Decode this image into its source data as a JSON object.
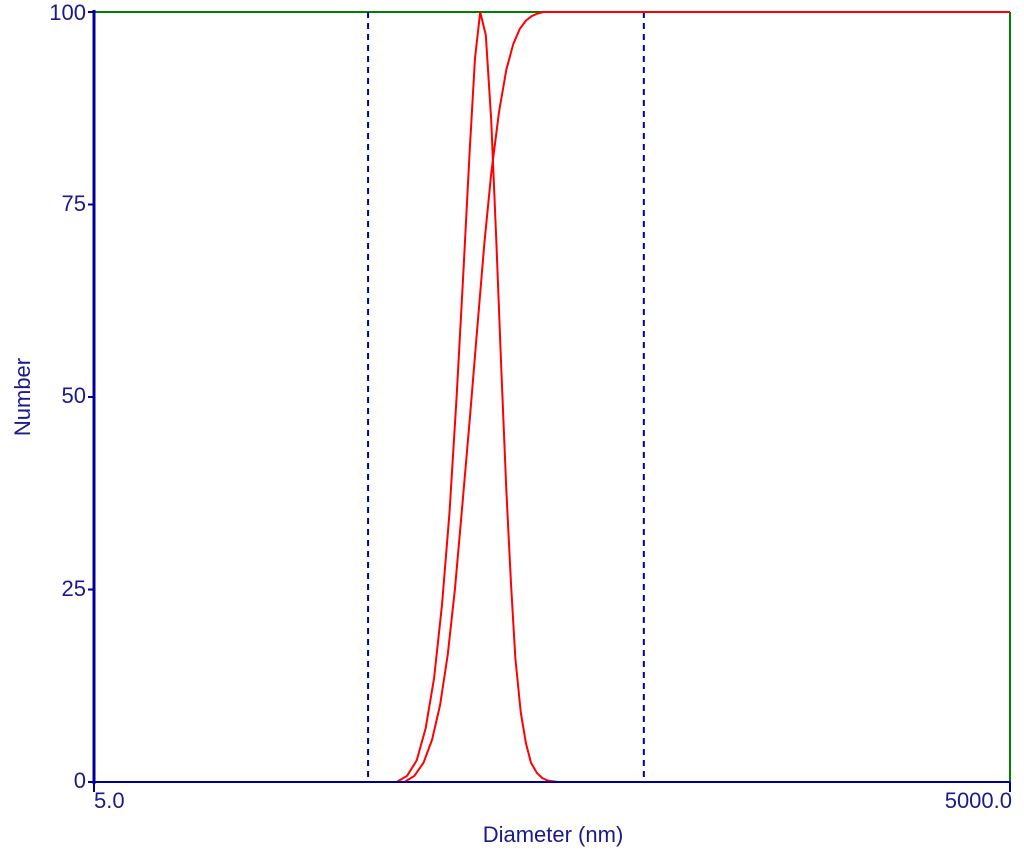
{
  "chart_data": {
    "type": "line",
    "title": "",
    "xlabel": "Diameter (nm)",
    "ylabel": "Number",
    "x_scale": "log",
    "xlim": [
      5.0,
      5000.0
    ],
    "ylim": [
      0,
      100
    ],
    "x_tick_labels": [
      "5.0",
      "5000.0"
    ],
    "y_ticks": [
      0,
      25,
      50,
      75,
      100
    ],
    "y_tick_labels": [
      "0",
      "25",
      "50",
      "75",
      "100"
    ],
    "grid": false,
    "vertical_markers": [
      39.5,
      316.0
    ],
    "colors": {
      "axis": "#000099",
      "frame": "#008000",
      "series": "#ff0000",
      "markers": "#000099",
      "text": "#1a1a8c"
    },
    "series": [
      {
        "kind": "distribution",
        "x": [
          5.0,
          49.0,
          53.0,
          57.0,
          61.0,
          65.0,
          69.0,
          73.0,
          77.0,
          81.0,
          85.0,
          88.5,
          92.0,
          96.0,
          100.0,
          104.0,
          108.0,
          112.0,
          116.0,
          120.0,
          125.0,
          130.0,
          135.0,
          141.0,
          147.0,
          153.0,
          159.0,
          165.0,
          175.0,
          5000.0
        ],
        "y": [
          0,
          0,
          0.8,
          2.8,
          7,
          13.5,
          23,
          35,
          50,
          66,
          82,
          94,
          100,
          97,
          86,
          70,
          53,
          38,
          26,
          16,
          9,
          5,
          2.5,
          1.2,
          0.5,
          0.2,
          0.1,
          0,
          0,
          0
        ]
      },
      {
        "kind": "cumulative",
        "x": [
          5.0,
          52.0,
          56.0,
          60.0,
          64.0,
          68.0,
          72.0,
          76.0,
          80.0,
          85.0,
          90.0,
          95.0,
          100.0,
          106.0,
          112.0,
          118.0,
          124.0,
          130.0,
          136.0,
          142.0,
          148.0,
          154.0,
          160.0,
          5000.0
        ],
        "y": [
          0,
          0,
          0.8,
          2.5,
          5.5,
          10,
          16.5,
          25,
          35,
          47,
          59,
          70,
          79,
          87,
          92.5,
          95.8,
          97.8,
          98.9,
          99.5,
          99.8,
          100,
          100,
          100,
          100
        ]
      }
    ]
  }
}
